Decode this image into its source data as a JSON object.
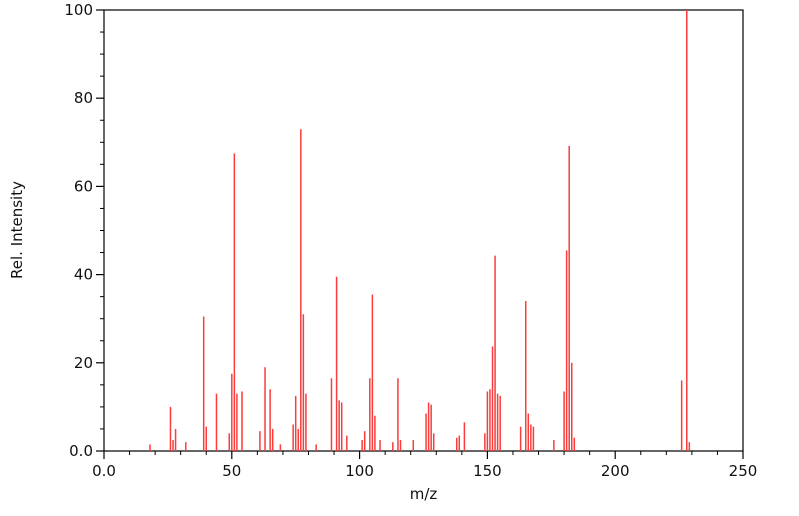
{
  "chart": {
    "xlabel": "m/z",
    "ylabel": "Rel. Intensity"
  },
  "chart_data": {
    "type": "stick",
    "title": "",
    "xlabel": "m/z",
    "ylabel": "Rel. Intensity",
    "xlim": [
      0,
      250
    ],
    "ylim": [
      0,
      100
    ],
    "grid": false,
    "legend": null,
    "stick_color": "#fa3c3c",
    "axis_color": "#000000",
    "xticks": {
      "values": [
        0,
        50,
        100,
        150,
        200,
        250
      ],
      "labels": [
        "0.0",
        "50",
        "100",
        "150",
        "200",
        "250"
      ],
      "minor_step": 10
    },
    "yticks": {
      "values": [
        0,
        20,
        40,
        60,
        80,
        100
      ],
      "labels": [
        "0.0",
        "20",
        "40",
        "60",
        "80",
        "100"
      ],
      "minor_step": 5
    },
    "peaks": [
      [
        18,
        1.5
      ],
      [
        26,
        10
      ],
      [
        27,
        2.5
      ],
      [
        28,
        5
      ],
      [
        32,
        2
      ],
      [
        39,
        30.5
      ],
      [
        40,
        5.5
      ],
      [
        44,
        13
      ],
      [
        49,
        4
      ],
      [
        50,
        17.5
      ],
      [
        51,
        67.5
      ],
      [
        52,
        13
      ],
      [
        54,
        13.5
      ],
      [
        61,
        4.5
      ],
      [
        63,
        19
      ],
      [
        65,
        14
      ],
      [
        66,
        5
      ],
      [
        69,
        1.5
      ],
      [
        74,
        6
      ],
      [
        75,
        12.5
      ],
      [
        76,
        5
      ],
      [
        77,
        73
      ],
      [
        78,
        31
      ],
      [
        79,
        13
      ],
      [
        83,
        1.5
      ],
      [
        89,
        16.5
      ],
      [
        91,
        39.5
      ],
      [
        92,
        11.5
      ],
      [
        93,
        11
      ],
      [
        95,
        3.5
      ],
      [
        101,
        2.5
      ],
      [
        102,
        4.5
      ],
      [
        104,
        16.5
      ],
      [
        105,
        35.5
      ],
      [
        106,
        8
      ],
      [
        108,
        2.5
      ],
      [
        113,
        2
      ],
      [
        115,
        16.5
      ],
      [
        116,
        2.5
      ],
      [
        121,
        2.5
      ],
      [
        126,
        8.5
      ],
      [
        127,
        11
      ],
      [
        128,
        10.5
      ],
      [
        129,
        4
      ],
      [
        138,
        3
      ],
      [
        139,
        3.5
      ],
      [
        141,
        6.5
      ],
      [
        149,
        4
      ],
      [
        150,
        13.5
      ],
      [
        151,
        14
      ],
      [
        152,
        23.7
      ],
      [
        153,
        44.3
      ],
      [
        154,
        13
      ],
      [
        155,
        12.5
      ],
      [
        163,
        5.5
      ],
      [
        165,
        34
      ],
      [
        166,
        8.5
      ],
      [
        167,
        6
      ],
      [
        168,
        5.5
      ],
      [
        176,
        2.5
      ],
      [
        180,
        13.5
      ],
      [
        181,
        45.5
      ],
      [
        182,
        69.2
      ],
      [
        183,
        20
      ],
      [
        184,
        3
      ],
      [
        226,
        16
      ],
      [
        228,
        100
      ],
      [
        229,
        2
      ]
    ]
  }
}
